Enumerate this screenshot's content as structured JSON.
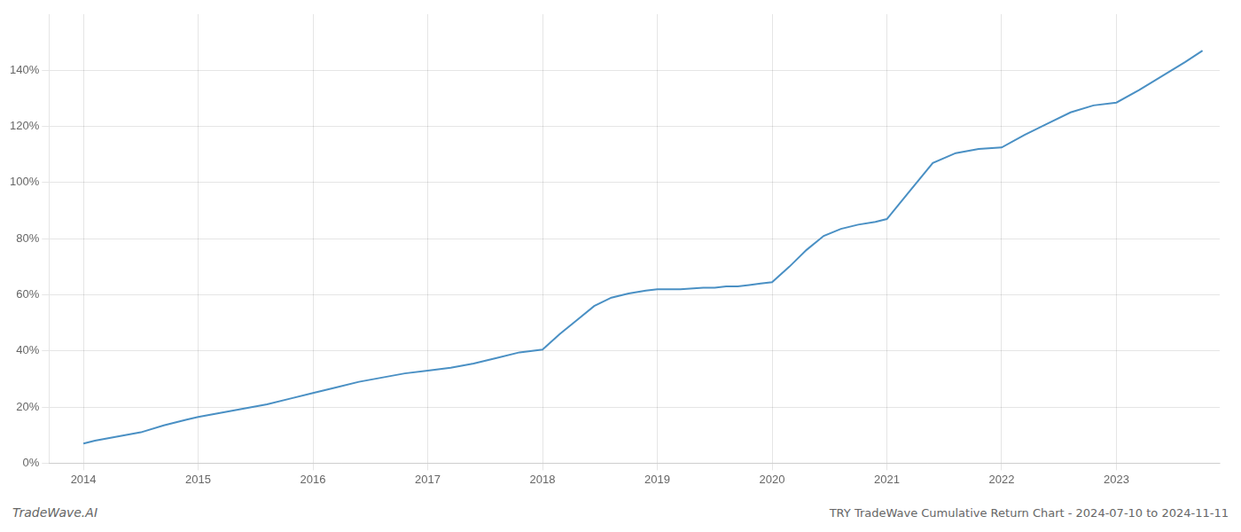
{
  "chart_data": {
    "type": "line",
    "title": "TRY TradeWave Cumulative Return Chart - 2024-07-10 to 2024-11-11",
    "annotations": [
      "TradeWave.AI"
    ],
    "color": "#4a90c4",
    "x": [
      2014.0,
      2014.1,
      2014.3,
      2014.5,
      2014.7,
      2014.9,
      2015.0,
      2015.2,
      2015.4,
      2015.6,
      2015.8,
      2016.0,
      2016.2,
      2016.4,
      2016.6,
      2016.8,
      2017.0,
      2017.2,
      2017.4,
      2017.6,
      2017.8,
      2018.0,
      2018.15,
      2018.3,
      2018.45,
      2018.6,
      2018.75,
      2018.9,
      2019.0,
      2019.2,
      2019.4,
      2019.5,
      2019.6,
      2019.7,
      2019.8,
      2019.9,
      2020.0,
      2020.15,
      2020.3,
      2020.45,
      2020.6,
      2020.75,
      2020.9,
      2021.0,
      2021.2,
      2021.4,
      2021.6,
      2021.8,
      2022.0,
      2022.2,
      2022.4,
      2022.6,
      2022.8,
      2023.0,
      2023.2,
      2023.4,
      2023.6,
      2023.75
    ],
    "values": [
      7.0,
      8.0,
      9.5,
      11.0,
      13.5,
      15.5,
      16.5,
      18.0,
      19.5,
      21.0,
      23.0,
      25.0,
      27.0,
      29.0,
      30.5,
      32.0,
      33.0,
      34.0,
      35.5,
      37.5,
      39.5,
      40.5,
      46.0,
      51.0,
      56.0,
      59.0,
      60.5,
      61.5,
      62.0,
      62.0,
      62.5,
      62.5,
      63.0,
      63.0,
      63.5,
      64.0,
      64.5,
      70.0,
      76.0,
      81.0,
      83.5,
      85.0,
      86.0,
      87.0,
      97.0,
      107.0,
      110.5,
      112.0,
      112.5,
      117.0,
      121.0,
      125.0,
      127.5,
      128.5,
      133.0,
      138.0,
      143.0,
      147.0
    ],
    "xlim": [
      2013.7,
      2023.9
    ],
    "ylim": [
      0,
      160
    ],
    "xticks": [
      2014,
      2015,
      2016,
      2017,
      2018,
      2019,
      2020,
      2021,
      2022,
      2023
    ],
    "yticks": [
      {
        "value": 0,
        "label": "0%"
      },
      {
        "value": 20,
        "label": "20%"
      },
      {
        "value": 40,
        "label": "40%"
      },
      {
        "value": 60,
        "label": "60%"
      },
      {
        "value": 80,
        "label": "80%"
      },
      {
        "value": 100,
        "label": "100%"
      },
      {
        "value": 120,
        "label": "120%"
      },
      {
        "value": 140,
        "label": "140%"
      }
    ],
    "grid": true
  }
}
